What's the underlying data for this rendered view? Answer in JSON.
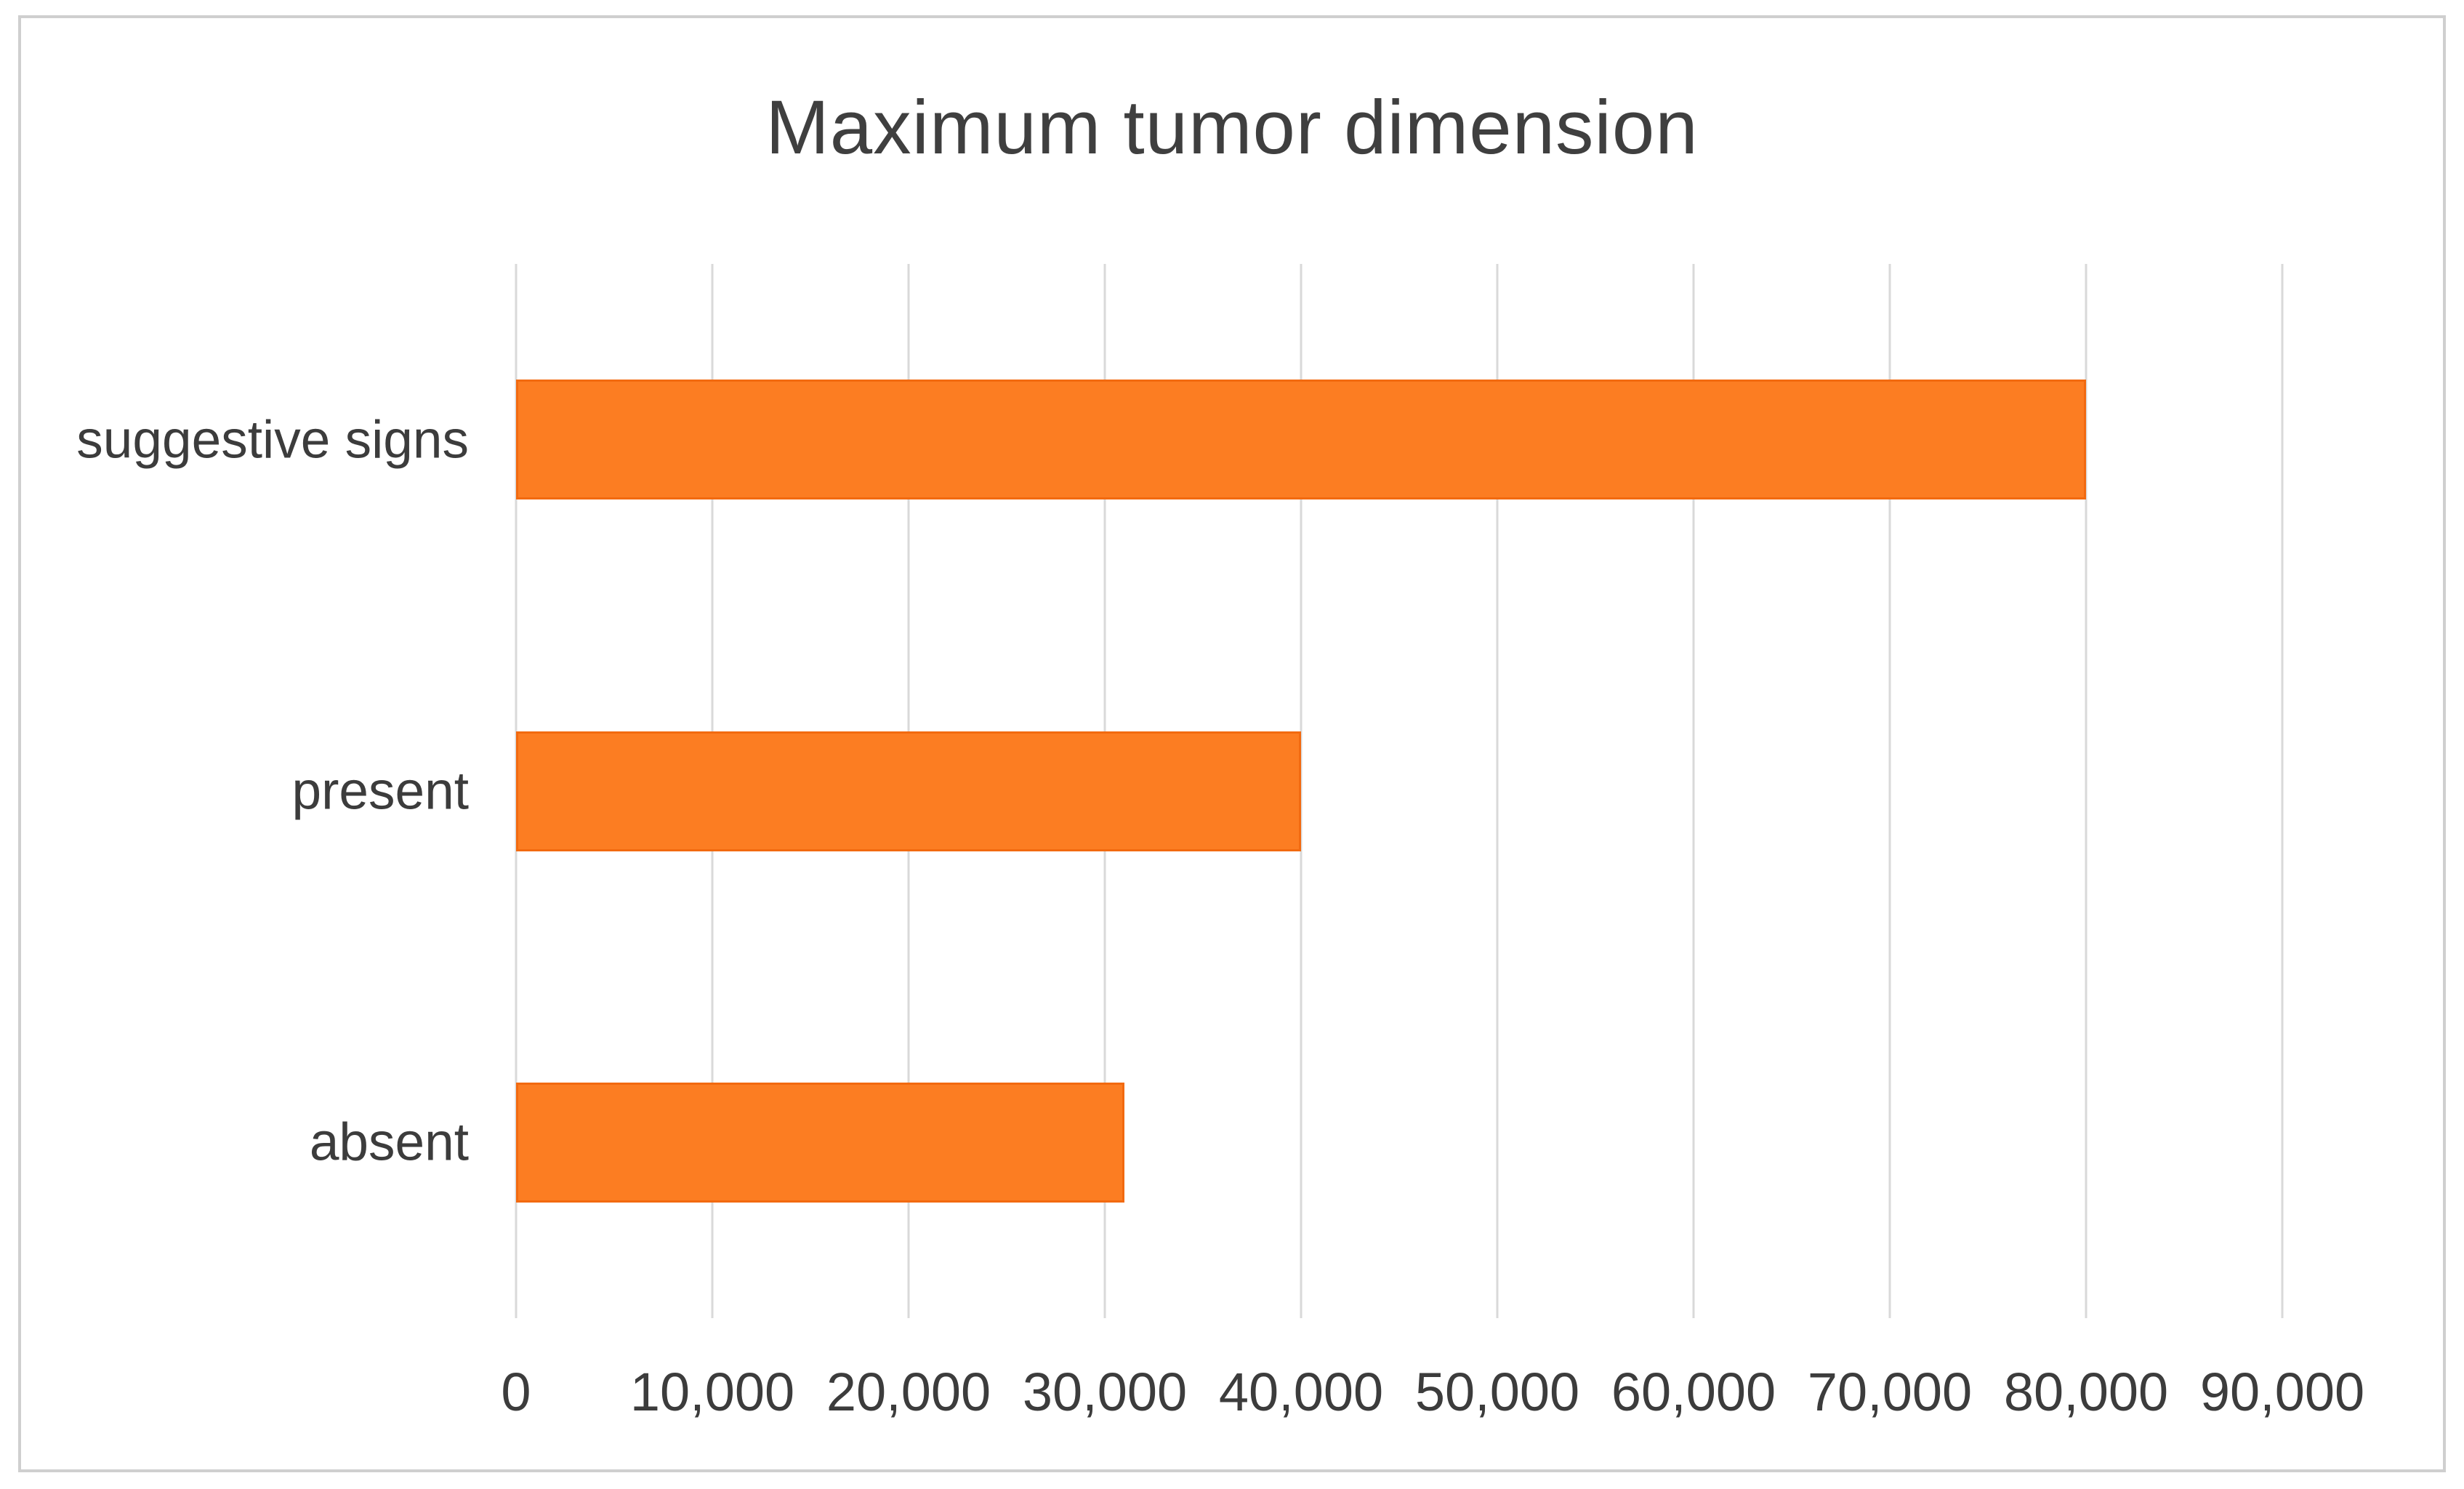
{
  "chart_data": {
    "type": "bar",
    "orientation": "horizontal",
    "title": "Maximum tumor dimension",
    "categories": [
      "suggestive signs",
      "present",
      "absent"
    ],
    "values": [
      80000,
      40000,
      31000
    ],
    "xlim": [
      0,
      90000
    ],
    "x_ticks": [
      0,
      10000,
      20000,
      30000,
      40000,
      50000,
      60000,
      70000,
      80000,
      90000
    ],
    "x_tick_labels": [
      "0",
      "10,000",
      "20,000",
      "30,000",
      "40,000",
      "50,000",
      "60,000",
      "70,000",
      "80,000",
      "90,000"
    ],
    "grid": true,
    "legend": false,
    "bar_color": "#fc7d22",
    "bar_border_color": "#f26a10",
    "gridline_color": "#d9d9d9",
    "text_color": "#3c3c3c",
    "frame_border_color": "#cfcfcf"
  }
}
